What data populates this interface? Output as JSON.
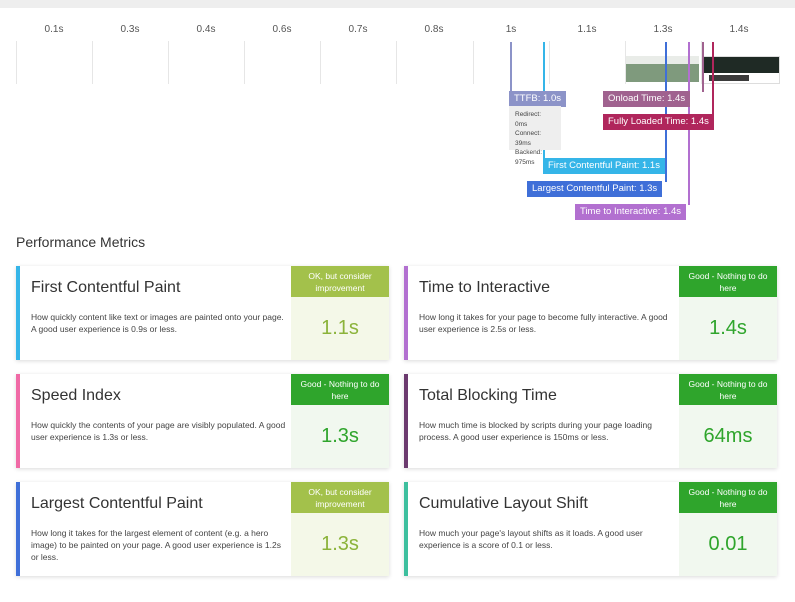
{
  "timeline": {
    "ticks": [
      "0.1s",
      "0.3s",
      "0.4s",
      "0.6s",
      "0.7s",
      "0.8s",
      "1s",
      "1.1s",
      "1.3s",
      "1.4s"
    ],
    "markers": {
      "ttfb": "TTFB: 1.0s",
      "onload": "Onload Time: 1.4s",
      "fully_loaded": "Fully Loaded Time: 1.4s",
      "fcp": "First Contentful Paint: 1.1s",
      "lcp": "Largest Contentful Paint: 1.3s",
      "tti": "Time to Interactive: 1.4s"
    },
    "ttfb_details": {
      "redirect": "Redirect: 0ms",
      "connect": "Connect: 39ms",
      "backend": "Backend: 975ms"
    },
    "colors": {
      "ttfb": "#8c93c8",
      "onload": "#a0628f",
      "fully_loaded": "#b0265c",
      "fcp": "#35b5e8",
      "lcp": "#3f6fd8",
      "tti": "#b270d0"
    }
  },
  "section_title": "Performance Metrics",
  "metrics": [
    {
      "name": "First Contentful Paint",
      "description": "How quickly content like text or images are painted onto your page. A good user experience is 0.9s or less.",
      "badge": "OK, but consider improvement",
      "value": "1.1s",
      "rating": "ok",
      "accent": "#35b5e8"
    },
    {
      "name": "Time to Interactive",
      "description": "How long it takes for your page to become fully interactive. A good user experience is 2.5s or less.",
      "badge": "Good - Nothing to do here",
      "value": "1.4s",
      "rating": "good",
      "accent": "#b270d0"
    },
    {
      "name": "Speed Index",
      "description": "How quickly the contents of your page are visibly populated. A good user experience is 1.3s or less.",
      "badge": "Good - Nothing to do here",
      "value": "1.3s",
      "rating": "good",
      "accent": "#f06aa6"
    },
    {
      "name": "Total Blocking Time",
      "description": "How much time is blocked by scripts during your page loading process. A good user experience is 150ms or less.",
      "badge": "Good - Nothing to do here",
      "value": "64ms",
      "rating": "good",
      "accent": "#6b3a6e"
    },
    {
      "name": "Largest Contentful Paint",
      "description": "How long it takes for the largest element of content (e.g. a hero image) to be painted on your page. A good user experience is 1.2s or less.",
      "badge": "OK, but consider improvement",
      "value": "1.3s",
      "rating": "ok",
      "accent": "#3f6fd8"
    },
    {
      "name": "Cumulative Layout Shift",
      "description": "How much your page's layout shifts as it loads. A good user experience is a score of 0.1 or less.",
      "badge": "Good - Nothing to do here",
      "value": "0.01",
      "rating": "good",
      "accent": "#3dbf9e"
    }
  ]
}
